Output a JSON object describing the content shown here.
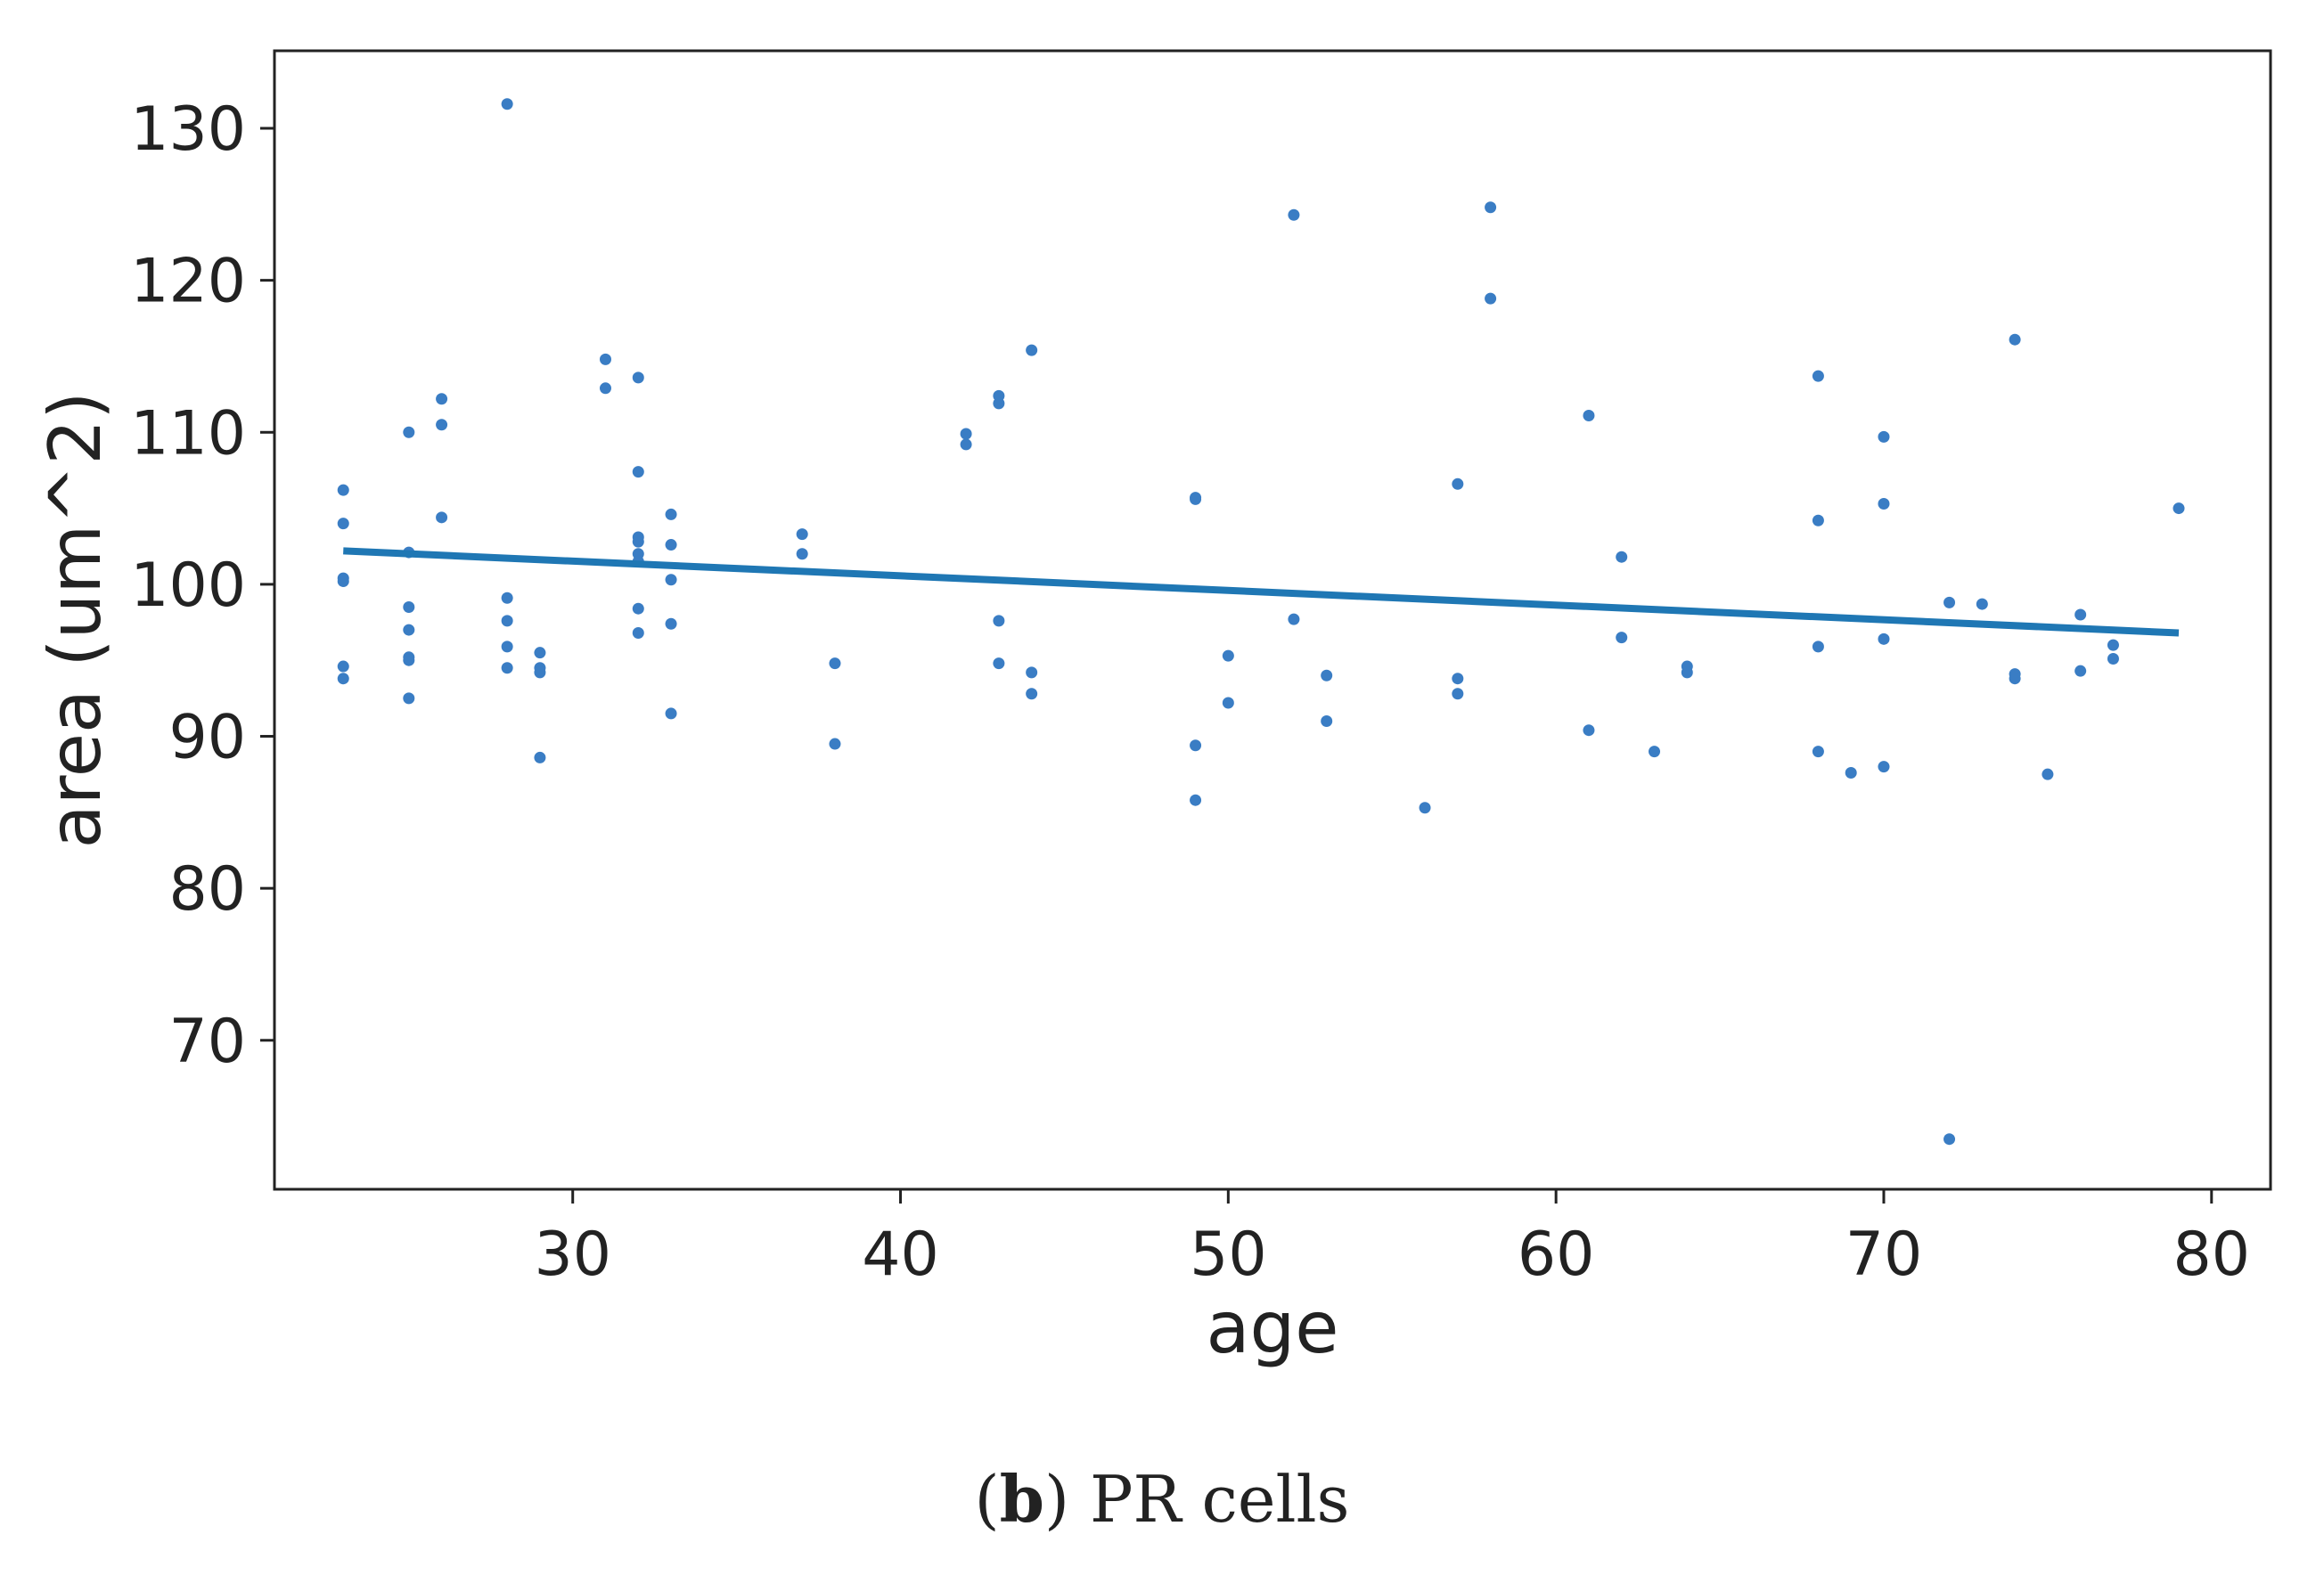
{
  "chart_data": {
    "type": "scatter",
    "xlabel": "age",
    "ylabel": "area (um^2)",
    "xlim": [
      20.9,
      81.8
    ],
    "ylim": [
      60.2,
      135.1
    ],
    "xticks": [
      30,
      40,
      50,
      60,
      70,
      80
    ],
    "yticks": [
      70,
      80,
      90,
      100,
      110,
      120,
      130
    ],
    "grid": false,
    "colors": {
      "points": "#3a7dc4",
      "fit": "#1f77b4",
      "axes": "#222222"
    },
    "points": [
      [
        23,
        106.2
      ],
      [
        23,
        104.0
      ],
      [
        23,
        100.4
      ],
      [
        23,
        100.2
      ],
      [
        23,
        94.6
      ],
      [
        23,
        93.8
      ],
      [
        25,
        110.0
      ],
      [
        25,
        102.1
      ],
      [
        25,
        98.5
      ],
      [
        25,
        97.0
      ],
      [
        25,
        95.2
      ],
      [
        25,
        95.0
      ],
      [
        25,
        92.5
      ],
      [
        26,
        112.2
      ],
      [
        26,
        110.5
      ],
      [
        26,
        104.4
      ],
      [
        28,
        131.6
      ],
      [
        28,
        99.1
      ],
      [
        28,
        97.6
      ],
      [
        28,
        95.9
      ],
      [
        28,
        94.5
      ],
      [
        29,
        95.5
      ],
      [
        29,
        94.5
      ],
      [
        29,
        94.2
      ],
      [
        29,
        88.6
      ],
      [
        31,
        114.8
      ],
      [
        31,
        112.9
      ],
      [
        32,
        113.6
      ],
      [
        32,
        107.4
      ],
      [
        32,
        103.1
      ],
      [
        32,
        102.8
      ],
      [
        32,
        102.0
      ],
      [
        32,
        101.5
      ],
      [
        32,
        98.4
      ],
      [
        32,
        96.8
      ],
      [
        33,
        104.6
      ],
      [
        33,
        102.6
      ],
      [
        33,
        100.3
      ],
      [
        33,
        97.4
      ],
      [
        33,
        91.5
      ],
      [
        37,
        103.3
      ],
      [
        37,
        102.0
      ],
      [
        38,
        94.8
      ],
      [
        38,
        89.5
      ],
      [
        42,
        109.9
      ],
      [
        42,
        109.2
      ],
      [
        43,
        112.4
      ],
      [
        43,
        111.9
      ],
      [
        43,
        97.6
      ],
      [
        43,
        94.8
      ],
      [
        44,
        115.4
      ],
      [
        44,
        94.2
      ],
      [
        44,
        92.8
      ],
      [
        49,
        105.7
      ],
      [
        49,
        105.6
      ],
      [
        49,
        89.4
      ],
      [
        49,
        85.8
      ],
      [
        50,
        95.3
      ],
      [
        50,
        92.2
      ],
      [
        52,
        124.3
      ],
      [
        52,
        97.7
      ],
      [
        53,
        94.0
      ],
      [
        53,
        91.0
      ],
      [
        56,
        85.3
      ],
      [
        57,
        106.6
      ],
      [
        57,
        93.8
      ],
      [
        57,
        92.8
      ],
      [
        58,
        124.8
      ],
      [
        58,
        118.8
      ],
      [
        61,
        111.1
      ],
      [
        61,
        90.4
      ],
      [
        62,
        101.8
      ],
      [
        62,
        96.5
      ],
      [
        63,
        89.0
      ],
      [
        64,
        94.6
      ],
      [
        64,
        94.2
      ],
      [
        68,
        113.7
      ],
      [
        68,
        104.2
      ],
      [
        68,
        95.9
      ],
      [
        68,
        89.0
      ],
      [
        69,
        87.6
      ],
      [
        70,
        109.7
      ],
      [
        70,
        105.3
      ],
      [
        70,
        96.4
      ],
      [
        70,
        88.0
      ],
      [
        72,
        98.8
      ],
      [
        72,
        63.5
      ],
      [
        73,
        98.7
      ],
      [
        74,
        116.1
      ],
      [
        74,
        94.1
      ],
      [
        74,
        93.8
      ],
      [
        75,
        87.5
      ],
      [
        76,
        98.0
      ],
      [
        76,
        94.3
      ],
      [
        77,
        96.0
      ],
      [
        77,
        95.1
      ],
      [
        79,
        105.0
      ]
    ],
    "fit_line": {
      "x": [
        23,
        79
      ],
      "y": [
        102.2,
        96.8
      ]
    }
  },
  "caption": {
    "label": "(b)",
    "label_letter": "b",
    "text": "PR cells"
  }
}
